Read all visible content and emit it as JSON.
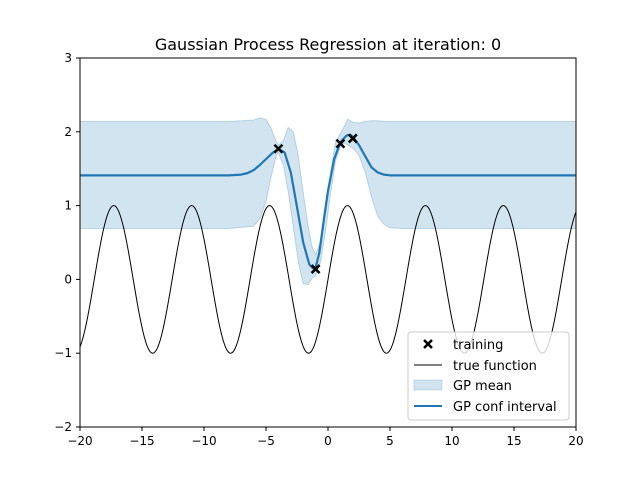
{
  "chart_data": {
    "type": "line",
    "title": "Gaussian Process Regression at iteration: 0",
    "xlabel": "",
    "ylabel": "",
    "xlim": [
      -20,
      20
    ],
    "ylim": [
      -2,
      3
    ],
    "x_ticks": [
      -20,
      -15,
      -10,
      -5,
      0,
      5,
      10,
      15,
      20
    ],
    "x_tick_labels": [
      "−20",
      "−15",
      "−10",
      "−5",
      "0",
      "5",
      "10",
      "15",
      "20"
    ],
    "y_ticks": [
      -2,
      -1,
      0,
      1,
      2,
      3
    ],
    "y_tick_labels": [
      "−2",
      "−1",
      "0",
      "1",
      "2",
      "3"
    ],
    "grid": false,
    "legend_position": "bottom-right",
    "series": [
      {
        "name": "training",
        "kind": "scatter",
        "marker": "x",
        "color": "#000000",
        "x": [
          -4.0,
          -1.0,
          1.0,
          2.0
        ],
        "y": [
          1.77,
          0.14,
          1.84,
          1.91
        ]
      },
      {
        "name": "true function",
        "kind": "line",
        "color": "#000000",
        "equation": "sin(x)",
        "x": [
          -20,
          -19,
          -18,
          -17,
          -16,
          -15,
          -14,
          -13,
          -12,
          -11,
          -10,
          -9,
          -8,
          -7,
          -6,
          -5,
          -4,
          -3,
          -2,
          -1,
          0,
          1,
          2,
          3,
          4,
          5,
          6,
          7,
          8,
          9,
          10,
          11,
          12,
          13,
          14,
          15,
          16,
          17,
          18,
          19,
          20
        ],
        "y": [
          -0.91,
          -0.15,
          0.75,
          0.96,
          0.29,
          -0.65,
          -0.99,
          -0.42,
          0.54,
          1.0,
          0.54,
          -0.41,
          -0.99,
          -0.66,
          0.28,
          0.96,
          0.76,
          -0.14,
          -0.91,
          -0.84,
          0.0,
          0.84,
          0.91,
          0.14,
          -0.76,
          -0.96,
          -0.28,
          0.66,
          0.99,
          0.41,
          -0.54,
          -1.0,
          -0.54,
          0.42,
          0.99,
          0.65,
          -0.29,
          -0.96,
          -0.75,
          0.15,
          0.91
        ]
      },
      {
        "name": "GP mean",
        "kind": "band",
        "color": "#1f77b4",
        "opacity": 0.2,
        "x": [
          -20,
          -8,
          -6,
          -5.5,
          -5,
          -4.6,
          -4.2,
          -4.0,
          -3.6,
          -3.2,
          -2.8,
          -2.4,
          -2.0,
          -1.6,
          -1.3,
          -1.0,
          -0.6,
          -0.2,
          0.2,
          0.6,
          1.0,
          1.3,
          1.6,
          2.0,
          2.5,
          3.0,
          3.5,
          4.0,
          4.5,
          5.0,
          6.0,
          8.0,
          20
        ],
        "lower": [
          0.69,
          0.69,
          0.72,
          0.82,
          1.05,
          1.38,
          1.66,
          1.72,
          1.55,
          1.18,
          0.71,
          0.24,
          -0.06,
          -0.07,
          0.01,
          0.05,
          0.24,
          0.65,
          1.16,
          1.6,
          1.8,
          1.85,
          1.82,
          1.78,
          1.68,
          1.45,
          1.12,
          0.86,
          0.75,
          0.7,
          0.69,
          0.69,
          0.69
        ],
        "upper": [
          2.14,
          2.14,
          2.16,
          2.19,
          2.17,
          2.05,
          1.88,
          1.82,
          1.88,
          2.06,
          2.0,
          1.68,
          1.18,
          0.72,
          0.45,
          0.34,
          0.51,
          0.95,
          1.44,
          1.86,
          1.98,
          2.07,
          2.17,
          2.13,
          2.12,
          2.14,
          2.15,
          2.15,
          2.14,
          2.14,
          2.14,
          2.14,
          2.14
        ]
      },
      {
        "name": "GP conf interval",
        "kind": "line",
        "color": "#1f77b4",
        "linewidth": 2,
        "x": [
          -20,
          -8,
          -7,
          -6.5,
          -6,
          -5.5,
          -5,
          -4.5,
          -4.0,
          -3.5,
          -3.0,
          -2.5,
          -2.0,
          -1.5,
          -1.2,
          -1.0,
          -0.7,
          -0.3,
          0.0,
          0.5,
          1.0,
          1.5,
          1.8,
          2.0,
          2.5,
          3.0,
          3.5,
          4.0,
          4.5,
          5.0,
          6.0,
          8.0,
          20
        ],
        "y": [
          1.41,
          1.41,
          1.42,
          1.44,
          1.48,
          1.55,
          1.63,
          1.71,
          1.77,
          1.72,
          1.45,
          0.98,
          0.5,
          0.2,
          0.15,
          0.16,
          0.36,
          0.85,
          1.2,
          1.63,
          1.86,
          1.95,
          1.96,
          1.93,
          1.82,
          1.67,
          1.52,
          1.45,
          1.42,
          1.41,
          1.41,
          1.41,
          1.41
        ]
      }
    ]
  }
}
